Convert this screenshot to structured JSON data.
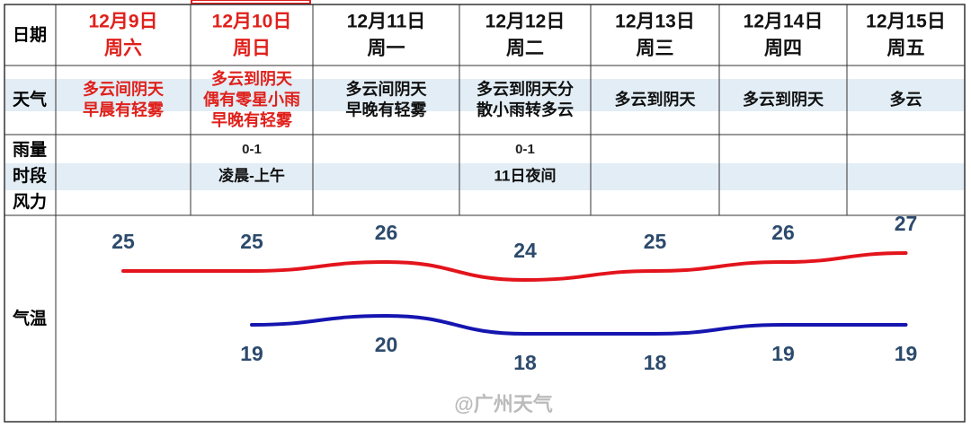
{
  "row_labels": {
    "date": "日期",
    "weather": "天气",
    "rain": "雨量",
    "period": "时段",
    "wind": "风力",
    "temperature": "气温"
  },
  "days": [
    {
      "date": "12月9日",
      "weekday": "周六",
      "weather": [
        "多云间阴天",
        "早晨有轻雾"
      ],
      "rain": null,
      "period": null,
      "highlight": true
    },
    {
      "date": "12月10日",
      "weekday": "周日",
      "weather": [
        "多云到阴天",
        "偶有零星小雨",
        "早晚有轻雾"
      ],
      "rain": "0-1",
      "period": "凌晨-上午",
      "highlight": true
    },
    {
      "date": "12月11日",
      "weekday": "周一",
      "weather": [
        "多云间阴天",
        "早晚有轻雾"
      ],
      "rain": null,
      "period": null,
      "highlight": false
    },
    {
      "date": "12月12日",
      "weekday": "周二",
      "weather": [
        "多云到阴天分",
        "散小雨转多云"
      ],
      "rain": "0-1",
      "period": "11日夜间",
      "highlight": false
    },
    {
      "date": "12月13日",
      "weekday": "周三",
      "weather": [
        "多云到阴天"
      ],
      "rain": null,
      "period": null,
      "highlight": false
    },
    {
      "date": "12月14日",
      "weekday": "周四",
      "weather": [
        "多云到阴天"
      ],
      "rain": null,
      "period": null,
      "highlight": false
    },
    {
      "date": "12月15日",
      "weekday": "周五",
      "weather": [
        "多云"
      ],
      "rain": null,
      "period": null,
      "highlight": false
    }
  ],
  "chart_data": {
    "type": "line",
    "series": [
      {
        "name": "high",
        "color": "#e3141c",
        "values": [
          25,
          25,
          26,
          24,
          25,
          26,
          27
        ]
      },
      {
        "name": "low",
        "color": "#1515b0",
        "values": [
          null,
          19,
          20,
          18,
          18,
          19,
          19
        ]
      }
    ]
  },
  "watermark": "@广州天气"
}
